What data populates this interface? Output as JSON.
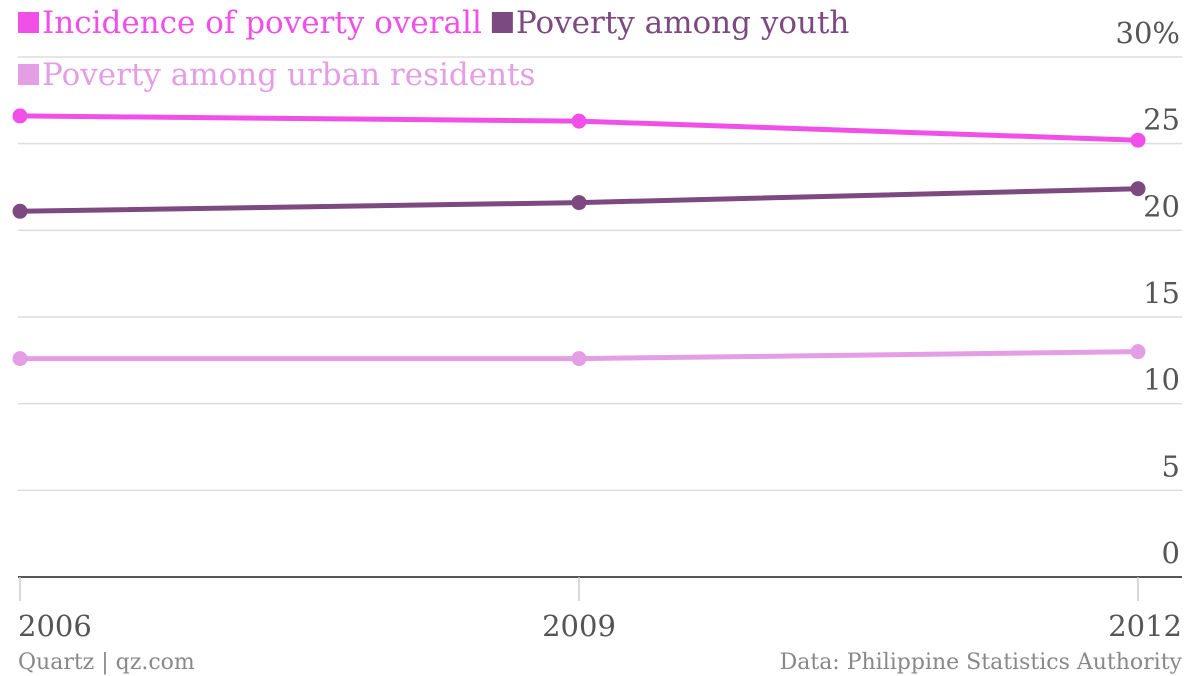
{
  "chart_data": {
    "type": "line",
    "x": [
      "2006",
      "2009",
      "2012"
    ],
    "series": [
      {
        "name": "Incidence of poverty overall",
        "values": [
          26.6,
          26.3,
          25.2
        ],
        "color": "#f050e8"
      },
      {
        "name": "Poverty among youth",
        "values": [
          21.1,
          21.6,
          22.4
        ],
        "color": "#7c4a80"
      },
      {
        "name": "Poverty among urban residents",
        "values": [
          12.6,
          12.6,
          13.0
        ],
        "color": "#e49ee6"
      }
    ],
    "y_ticks": [
      "0",
      "5",
      "10",
      "15",
      "20",
      "25",
      "30%"
    ],
    "y_tick_values": [
      0,
      5,
      10,
      15,
      20,
      25,
      30
    ],
    "ylim": [
      0,
      30
    ],
    "grid": true,
    "legend_position": "top-left",
    "title": "",
    "xlabel": "",
    "ylabel": ""
  },
  "footer": {
    "source_left": "Quartz | qz.com",
    "source_right": "Data: Philippine Statistics Authority"
  }
}
